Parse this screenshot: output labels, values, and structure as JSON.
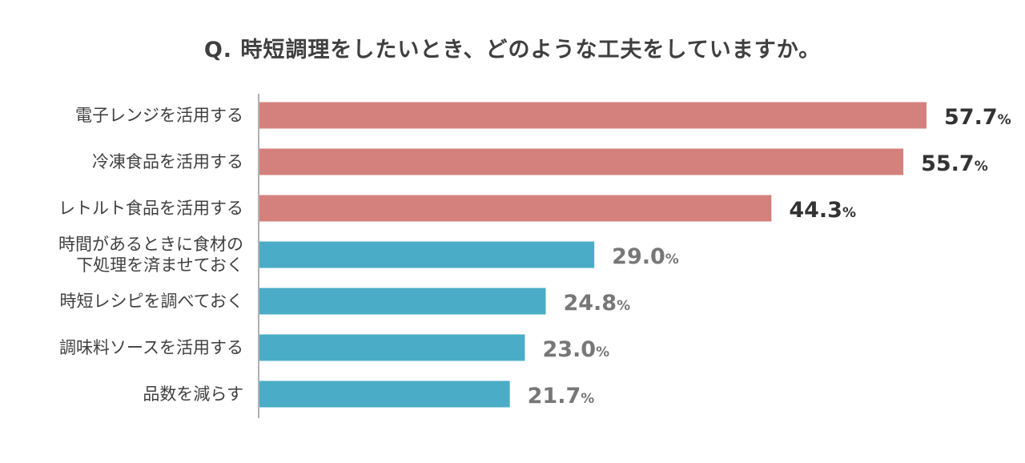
{
  "chart_data": {
    "type": "bar",
    "orientation": "horizontal",
    "title": "Q. 時短調理をしたいとき、どのような工夫をしていますか。",
    "categories": [
      [
        "電子レンジを活用する"
      ],
      [
        "冷凍食品を活用する"
      ],
      [
        "レトルト食品を活用する"
      ],
      [
        "時間があるときに食材の",
        "下処理を済ませておく"
      ],
      [
        "時短レシピを調べておく"
      ],
      [
        "調味料ソースを活用する"
      ],
      [
        "品数を減らす"
      ]
    ],
    "values": [
      57.7,
      55.7,
      44.3,
      29.0,
      24.8,
      23.0,
      21.7
    ],
    "value_labels": [
      "57.7",
      "55.7",
      "44.3",
      "29.0",
      "24.8",
      "23.0",
      "21.7"
    ],
    "unit": "%",
    "bar_colors": [
      "#d4817e",
      "#d4817e",
      "#d4817e",
      "#4aacc6",
      "#4aacc6",
      "#4aacc6",
      "#4aacc6"
    ],
    "label_colors": [
      "#333333",
      "#333333",
      "#333333",
      "#777777",
      "#777777",
      "#777777",
      "#777777"
    ],
    "axis_color": "#b0b0b0",
    "xlim": [
      0,
      57.7
    ],
    "grid": false
  }
}
